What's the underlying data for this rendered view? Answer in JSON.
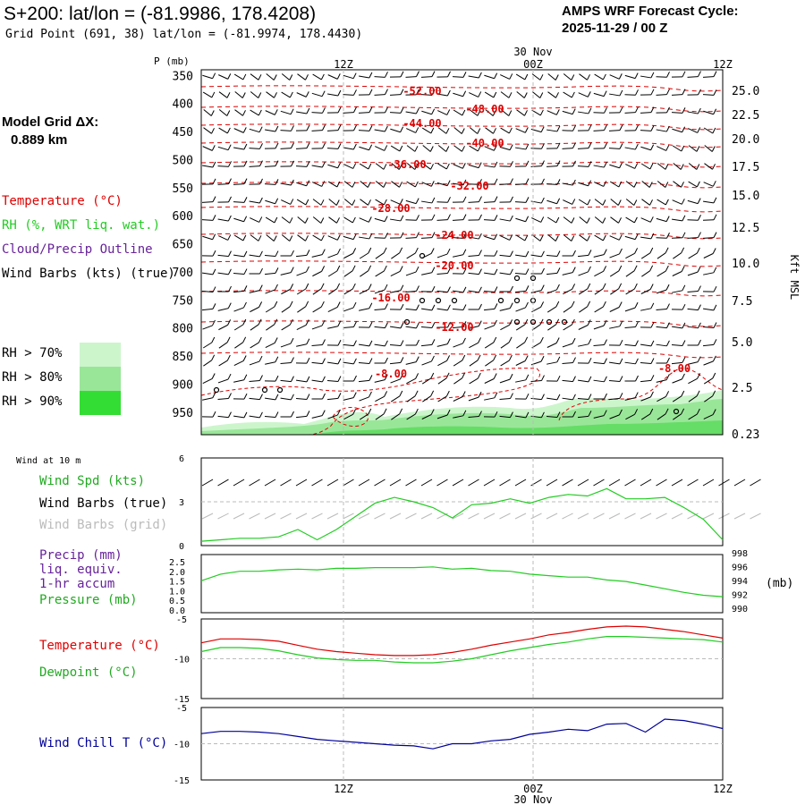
{
  "header": {
    "title": "S+200: lat/lon = (-81.9986, 178.4208)",
    "subtitle": "Grid Point (691, 38) lat/lon = (-81.9974, 178.4430)",
    "cycle_label": "AMPS WRF Forecast Cycle:",
    "cycle_value": "2025-11-29 / 00  Z"
  },
  "left_panel": {
    "grid_label": "Model Grid ΔX:",
    "grid_value": "0.889 km",
    "legend": {
      "temperature": "Temperature (°C)",
      "rh": "RH (%, WRT liq. wat.)",
      "cloud": "Cloud/Precip Outline",
      "wind": "Wind Barbs (kts) (true)"
    },
    "rh_legend": [
      {
        "label": "RH > 70%",
        "color": "#ccf5cc"
      },
      {
        "label": "RH > 80%",
        "color": "#99e699"
      },
      {
        "label": "RH > 90%",
        "color": "#33dd33"
      }
    ]
  },
  "time_axis": {
    "top_date": "30 Nov",
    "bottom_date": "30 Nov",
    "ticks": [
      "12Z",
      "00Z",
      "12Z"
    ]
  },
  "colors": {
    "temperature": "#dd0000",
    "rh_green": "#22cc22",
    "cloud_purple": "#662299",
    "grid_gray": "#aaaaaa",
    "wind_chill": "#000099"
  },
  "chart_data": [
    {
      "type": "line",
      "panel": "upper_air_cross_section",
      "y_axis_title": "P (mb)",
      "right_axis_title": "Kft MSL",
      "pressure_ticks": [
        "350",
        "400",
        "450",
        "500",
        "550",
        "600",
        "650",
        "700",
        "750",
        "800",
        "850",
        "900",
        "950"
      ],
      "height_ticks": [
        "25.0",
        "22.5",
        "20.0",
        "17.5",
        "15.0",
        "12.5",
        "10.0",
        "7.5",
        "5.0",
        "2.5",
        "0.23"
      ],
      "isotherm_labels": [
        "-52.00",
        "-48.00",
        "-44.00",
        "-40.00",
        "-36.00",
        "-32.00",
        "-28.00",
        "-24.00",
        "-20.00",
        "-16.00",
        "-12.00",
        "-8.00",
        "-8.00"
      ],
      "ylim": [
        340,
        990
      ]
    },
    {
      "type": "line",
      "panel": "wind_10m",
      "panel_title": "Wind at 10 m",
      "series_labels": {
        "speed": "Wind Spd (kts)",
        "barbs_true": "Wind Barbs (true)",
        "barbs_grid": "Wind Barbs (grid)"
      },
      "y_ticks": [
        "6",
        "3",
        "0"
      ],
      "ylim": [
        0,
        6
      ],
      "x": [
        0,
        1,
        2,
        3,
        4,
        5,
        6,
        7,
        8,
        9,
        10,
        11,
        12,
        13,
        14,
        15,
        16,
        17,
        18,
        19,
        20,
        21,
        22,
        23,
        24,
        25,
        26,
        27
      ],
      "series": [
        {
          "name": "Wind Spd (kts)",
          "values": [
            0.3,
            0.4,
            0.5,
            0.5,
            0.6,
            1.1,
            0.4,
            1.1,
            2.0,
            2.9,
            3.3,
            3.0,
            2.6,
            1.9,
            2.8,
            2.9,
            3.2,
            2.9,
            3.3,
            3.5,
            3.4,
            3.9,
            3.2,
            3.2,
            3.3,
            2.6,
            1.8,
            0.4
          ]
        }
      ]
    },
    {
      "type": "line",
      "panel": "precip_pressure",
      "series_labels": {
        "precip": "Precip (mm)",
        "liq": "liq. equiv.",
        "accum": "1-hr accum",
        "pressure": "Pressure (mb)"
      },
      "left_ticks": [
        "2.5",
        "2.0",
        "1.5",
        "1.0",
        "0.5",
        "0.0"
      ],
      "right_ticks": [
        "998",
        "996",
        "994",
        "992",
        "990"
      ],
      "right_unit": "(mb)",
      "ylim": [
        990,
        998
      ],
      "x": [
        0,
        1,
        2,
        3,
        4,
        5,
        6,
        7,
        8,
        9,
        10,
        11,
        12,
        13,
        14,
        15,
        16,
        17,
        18,
        19,
        20,
        21,
        22,
        23,
        24,
        25,
        26,
        27
      ],
      "series": [
        {
          "name": "Pressure (mb)",
          "values": [
            994.4,
            995.3,
            995.7,
            995.7,
            995.9,
            996.0,
            995.9,
            996.1,
            996.1,
            996.2,
            996.2,
            996.2,
            996.3,
            996.0,
            996.1,
            995.8,
            995.7,
            995.3,
            995.1,
            994.9,
            994.9,
            994.5,
            994.3,
            993.8,
            993.3,
            992.8,
            992.4,
            992.2
          ]
        }
      ]
    },
    {
      "type": "line",
      "panel": "temperature_dewpoint",
      "series_labels": {
        "temp": "Temperature (°C)",
        "dew": "Dewpoint (°C)"
      },
      "y_ticks": [
        "-5",
        "-10",
        "-15"
      ],
      "ylim": [
        -15,
        -5
      ],
      "x": [
        0,
        1,
        2,
        3,
        4,
        5,
        6,
        7,
        8,
        9,
        10,
        11,
        12,
        13,
        14,
        15,
        16,
        17,
        18,
        19,
        20,
        21,
        22,
        23,
        24,
        25,
        26,
        27
      ],
      "series": [
        {
          "name": "Temperature (°C)",
          "values": [
            -8.0,
            -7.5,
            -7.5,
            -7.6,
            -7.8,
            -8.3,
            -8.8,
            -9.1,
            -9.3,
            -9.5,
            -9.6,
            -9.6,
            -9.5,
            -9.2,
            -8.8,
            -8.3,
            -7.9,
            -7.5,
            -7.0,
            -6.7,
            -6.3,
            -6.0,
            -5.9,
            -6.0,
            -6.3,
            -6.6,
            -7.0,
            -7.4
          ]
        },
        {
          "name": "Dewpoint (°C)",
          "values": [
            -9.1,
            -8.6,
            -8.6,
            -8.7,
            -9.0,
            -9.5,
            -9.9,
            -10.1,
            -10.2,
            -10.2,
            -10.4,
            -10.5,
            -10.5,
            -10.3,
            -10.0,
            -9.5,
            -9.0,
            -8.6,
            -8.2,
            -7.9,
            -7.5,
            -7.2,
            -7.2,
            -7.3,
            -7.4,
            -7.5,
            -7.6,
            -7.9
          ]
        }
      ]
    },
    {
      "type": "line",
      "panel": "wind_chill",
      "series_labels": {
        "chill": "Wind Chill T (°C)"
      },
      "y_ticks": [
        "-5",
        "-10",
        "-15"
      ],
      "ylim": [
        -15,
        -5
      ],
      "x": [
        0,
        1,
        2,
        3,
        4,
        5,
        6,
        7,
        8,
        9,
        10,
        11,
        12,
        13,
        14,
        15,
        16,
        17,
        18,
        19,
        20,
        21,
        22,
        23,
        24,
        25,
        26,
        27
      ],
      "series": [
        {
          "name": "Wind Chill T (°C)",
          "values": [
            -8.6,
            -8.3,
            -8.3,
            -8.4,
            -8.6,
            -9.0,
            -9.4,
            -9.6,
            -9.8,
            -10.0,
            -10.2,
            -10.3,
            -10.7,
            -10.0,
            -10.0,
            -9.6,
            -9.4,
            -8.7,
            -8.4,
            -8.0,
            -8.2,
            -7.3,
            -7.2,
            -8.4,
            -6.6,
            -6.8,
            -7.3,
            -7.9
          ]
        }
      ]
    }
  ]
}
